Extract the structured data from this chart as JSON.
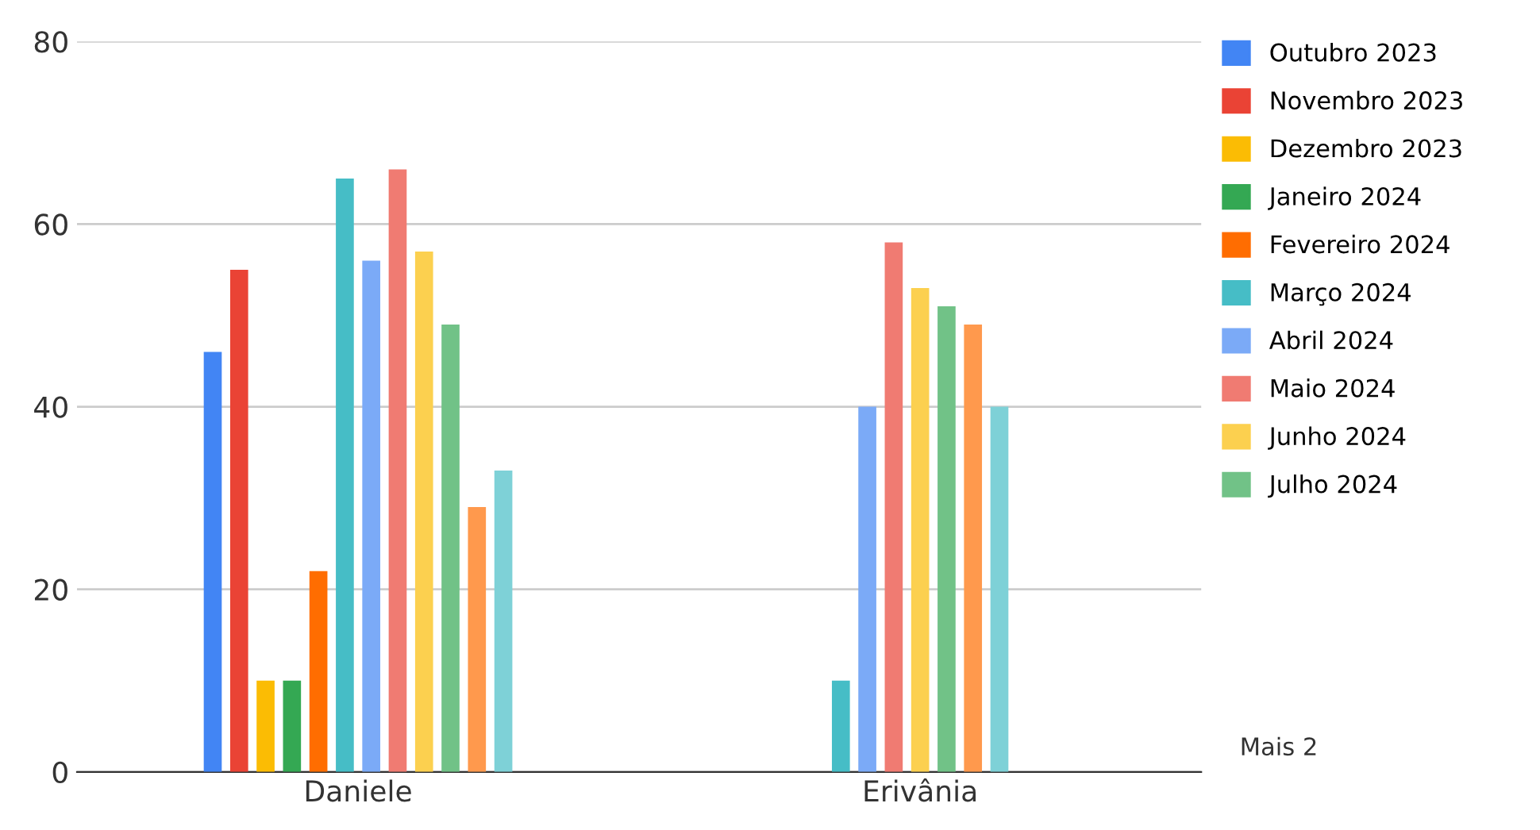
{
  "chart_data": {
    "type": "bar",
    "categories": [
      "Daniele",
      "Erivânia"
    ],
    "series": [
      {
        "name": "Outubro 2023",
        "color": "#4285f4",
        "values": [
          46,
          null
        ]
      },
      {
        "name": "Novembro 2023",
        "color": "#ea4335",
        "values": [
          55,
          null
        ]
      },
      {
        "name": "Dezembro 2023",
        "color": "#fbbc04",
        "values": [
          10,
          null
        ]
      },
      {
        "name": "Janeiro 2024",
        "color": "#34a853",
        "values": [
          10,
          null
        ]
      },
      {
        "name": "Fevereiro 2024",
        "color": "#ff6d01",
        "values": [
          22,
          null
        ]
      },
      {
        "name": "Março 2024",
        "color": "#46bdc6",
        "values": [
          65,
          10
        ]
      },
      {
        "name": "Abril 2024",
        "color": "#7baaf7",
        "values": [
          56,
          40
        ]
      },
      {
        "name": "Maio 2024",
        "color": "#f07b72",
        "values": [
          66,
          58
        ]
      },
      {
        "name": "Junho 2024",
        "color": "#fcd04f",
        "values": [
          57,
          53
        ]
      },
      {
        "name": "Julho 2024",
        "color": "#71c287",
        "values": [
          49,
          51
        ]
      },
      {
        "color": "#ff994d",
        "values": [
          29,
          49
        ]
      },
      {
        "color": "#7ed1d7",
        "values": [
          33,
          40
        ]
      }
    ],
    "ylim": [
      0,
      80
    ],
    "yticks": [
      0,
      20,
      40,
      60,
      80
    ],
    "grid": "y",
    "legend": "right",
    "annotations": [
      "Mais 2"
    ]
  }
}
